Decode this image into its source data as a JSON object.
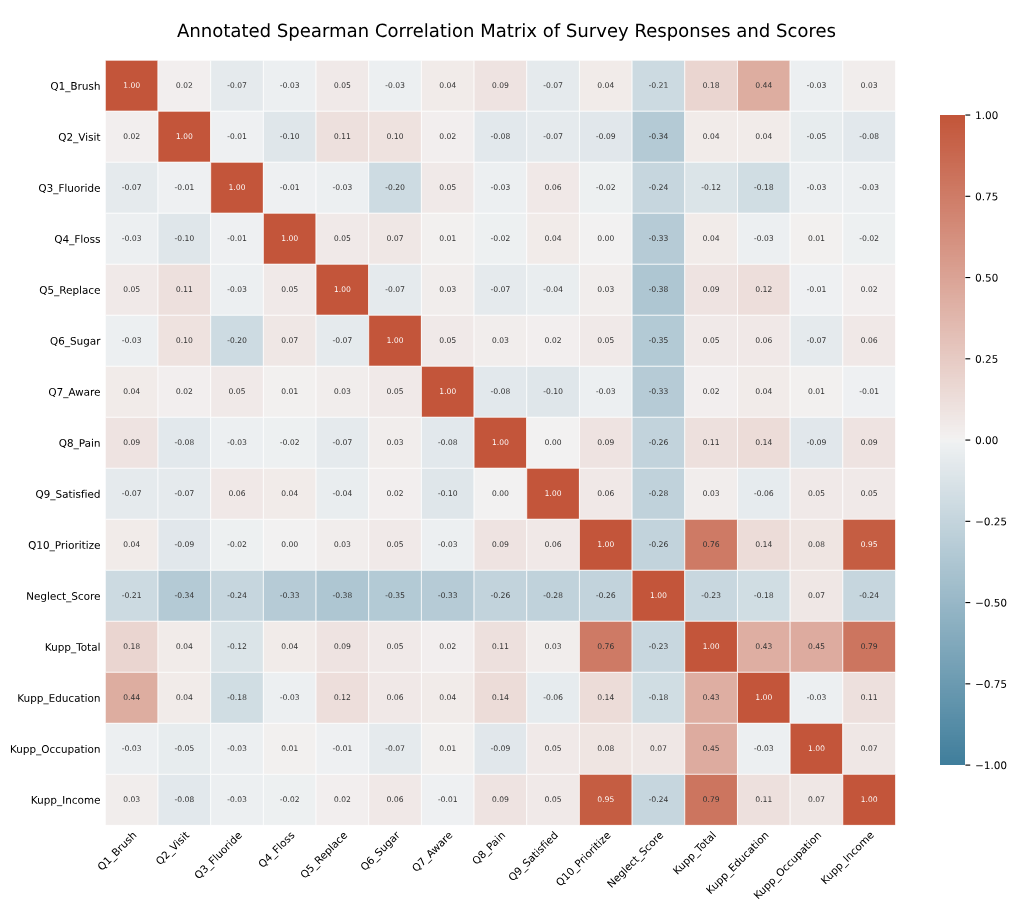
{
  "chart_data": {
    "type": "heatmap",
    "title": "Annotated Spearman Correlation Matrix of Survey Responses and Scores",
    "categories": [
      "Q1_Brush",
      "Q2_Visit",
      "Q3_Fluoride",
      "Q4_Floss",
      "Q5_Replace",
      "Q6_Sugar",
      "Q7_Aware",
      "Q8_Pain",
      "Q9_Satisfied",
      "Q10_Prioritize",
      "Neglect_Score",
      "Kupp_Total",
      "Kupp_Education",
      "Kupp_Occupation",
      "Kupp_Income"
    ],
    "y_categories": [
      "Q1_Brush",
      "Q2_Visit",
      "Q3_Fluoride",
      "Q4_Floss",
      "Q5_Replace",
      "Q6_Sugar",
      "Q7_Aware",
      "Q8_Pain",
      "Q9_Satisfied",
      "Q10_Prioritize",
      "Neglect_Score",
      "Kupp_Total",
      "Kupp_Education",
      "Kupp_Occupation",
      "Kupp_Income"
    ],
    "cells": [
      [
        1.0,
        0.02,
        -0.07,
        -0.03,
        0.05,
        -0.03,
        0.04,
        0.09,
        -0.07,
        0.04,
        -0.21,
        0.18,
        0.44,
        -0.03,
        0.03
      ],
      [
        0.02,
        1.0,
        -0.01,
        -0.1,
        0.11,
        0.1,
        0.02,
        -0.08,
        -0.07,
        -0.09,
        -0.34,
        0.04,
        0.04,
        -0.05,
        -0.08
      ],
      [
        -0.07,
        -0.01,
        1.0,
        -0.01,
        -0.03,
        -0.2,
        0.05,
        -0.03,
        0.06,
        -0.02,
        -0.24,
        -0.12,
        -0.18,
        -0.03,
        -0.03
      ],
      [
        -0.03,
        -0.1,
        -0.01,
        1.0,
        0.05,
        0.07,
        0.01,
        -0.02,
        0.04,
        0.0,
        -0.33,
        0.04,
        -0.03,
        0.01,
        -0.02
      ],
      [
        0.05,
        0.11,
        -0.03,
        0.05,
        1.0,
        -0.07,
        0.03,
        -0.07,
        -0.04,
        0.03,
        -0.38,
        0.09,
        0.12,
        -0.01,
        0.02
      ],
      [
        -0.03,
        0.1,
        -0.2,
        0.07,
        -0.07,
        1.0,
        0.05,
        0.03,
        0.02,
        0.05,
        -0.35,
        0.05,
        0.06,
        -0.07,
        0.06
      ],
      [
        0.04,
        0.02,
        0.05,
        0.01,
        0.03,
        0.05,
        1.0,
        -0.08,
        -0.1,
        -0.03,
        -0.33,
        0.02,
        0.04,
        0.01,
        -0.01
      ],
      [
        0.09,
        -0.08,
        -0.03,
        -0.02,
        -0.07,
        0.03,
        -0.08,
        1.0,
        0.0,
        0.09,
        -0.26,
        0.11,
        0.14,
        -0.09,
        0.09
      ],
      [
        -0.07,
        -0.07,
        0.06,
        0.04,
        -0.04,
        0.02,
        -0.1,
        0.0,
        1.0,
        0.06,
        -0.28,
        0.03,
        -0.06,
        0.05,
        0.05
      ],
      [
        0.04,
        -0.09,
        -0.02,
        0.0,
        0.03,
        0.05,
        -0.03,
        0.09,
        0.06,
        1.0,
        -0.26,
        0.76,
        0.14,
        0.08,
        0.95
      ],
      [
        -0.21,
        -0.34,
        -0.24,
        -0.33,
        -0.38,
        -0.35,
        -0.33,
        -0.26,
        -0.28,
        -0.26,
        1.0,
        -0.23,
        -0.18,
        0.07,
        -0.24
      ],
      [
        0.18,
        0.04,
        -0.12,
        0.04,
        0.09,
        0.05,
        0.02,
        0.11,
        0.03,
        0.76,
        -0.23,
        1.0,
        0.43,
        0.45,
        0.79
      ],
      [
        0.44,
        0.04,
        -0.18,
        -0.03,
        0.12,
        0.06,
        0.04,
        0.14,
        -0.06,
        0.14,
        -0.18,
        0.43,
        1.0,
        -0.03,
        0.11
      ],
      [
        -0.03,
        -0.05,
        -0.03,
        0.01,
        -0.01,
        -0.07,
        0.01,
        -0.09,
        0.05,
        0.08,
        0.07,
        0.45,
        -0.03,
        1.0,
        0.07
      ],
      [
        0.03,
        -0.08,
        -0.03,
        -0.02,
        0.02,
        0.06,
        -0.01,
        0.09,
        0.05,
        0.95,
        -0.24,
        0.79,
        0.11,
        0.07,
        1.0
      ]
    ],
    "cell_labels": [
      [
        "1.00",
        "0.02",
        "-0.07",
        "-0.03",
        "0.05",
        "-0.03",
        "0.04",
        "0.09",
        "-0.07",
        "0.04",
        "-0.21",
        "0.18",
        "0.44",
        "-0.03",
        "0.03"
      ],
      [
        "0.02",
        "1.00",
        "-0.01",
        "-0.10",
        "0.11",
        "0.10",
        "0.02",
        "-0.08",
        "-0.07",
        "-0.09",
        "-0.34",
        "0.04",
        "0.04",
        "-0.05",
        "-0.08"
      ],
      [
        "-0.07",
        "-0.01",
        "1.00",
        "-0.01",
        "-0.03",
        "-0.20",
        "0.05",
        "-0.03",
        "0.06",
        "-0.02",
        "-0.24",
        "-0.12",
        "-0.18",
        "-0.03",
        "-0.03"
      ],
      [
        "-0.03",
        "-0.10",
        "-0.01",
        "1.00",
        "0.05",
        "0.07",
        "0.01",
        "-0.02",
        "0.04",
        "0.00",
        "-0.33",
        "0.04",
        "-0.03",
        "0.01",
        "-0.02"
      ],
      [
        "0.05",
        "0.11",
        "-0.03",
        "0.05",
        "1.00",
        "-0.07",
        "0.03",
        "-0.07",
        "-0.04",
        "0.03",
        "-0.38",
        "0.09",
        "0.12",
        "-0.01",
        "0.02"
      ],
      [
        "-0.03",
        "0.10",
        "-0.20",
        "0.07",
        "-0.07",
        "1.00",
        "0.05",
        "0.03",
        "0.02",
        "0.05",
        "-0.35",
        "0.05",
        "0.06",
        "-0.07",
        "0.06"
      ],
      [
        "0.04",
        "0.02",
        "0.05",
        "0.01",
        "0.03",
        "0.05",
        "1.00",
        "-0.08",
        "-0.10",
        "-0.03",
        "-0.33",
        "0.02",
        "0.04",
        "0.01",
        "-0.01"
      ],
      [
        "0.09",
        "-0.08",
        "-0.03",
        "-0.02",
        "-0.07",
        "0.03",
        "-0.08",
        "1.00",
        "0.00",
        "0.09",
        "-0.26",
        "0.11",
        "0.14",
        "-0.09",
        "0.09"
      ],
      [
        "-0.07",
        "-0.07",
        "0.06",
        "0.04",
        "-0.04",
        "0.02",
        "-0.10",
        "0.00",
        "1.00",
        "0.06",
        "-0.28",
        "0.03",
        "-0.06",
        "0.05",
        "0.05"
      ],
      [
        "0.04",
        "-0.09",
        "-0.02",
        "0.00",
        "0.03",
        "0.05",
        "-0.03",
        "0.09",
        "0.06",
        "1.00",
        "-0.26",
        "0.76",
        "0.14",
        "0.08",
        "0.95"
      ],
      [
        "-0.21",
        "-0.34",
        "-0.24",
        "-0.33",
        "-0.38",
        "-0.35",
        "-0.33",
        "-0.26",
        "-0.28",
        "-0.26",
        "1.00",
        "-0.23",
        "-0.18",
        "0.07",
        "-0.24"
      ],
      [
        "0.18",
        "0.04",
        "-0.12",
        "0.04",
        "0.09",
        "0.05",
        "0.02",
        "0.11",
        "0.03",
        "0.76",
        "-0.23",
        "1.00",
        "0.43",
        "0.45",
        "0.79"
      ],
      [
        "0.44",
        "0.04",
        "-0.18",
        "-0.03",
        "0.12",
        "0.06",
        "0.04",
        "0.14",
        "-0.06",
        "0.14",
        "-0.18",
        "0.43",
        "1.00",
        "-0.03",
        "0.11"
      ],
      [
        "-0.03",
        "-0.05",
        "-0.03",
        "0.01",
        "-0.01",
        "-0.07",
        "0.01",
        "-0.09",
        "0.05",
        "0.08",
        "0.07",
        "0.45",
        "-0.03",
        "1.00",
        "0.07"
      ],
      [
        "0.03",
        "-0.08",
        "-0.03",
        "-0.02",
        "0.02",
        "0.06",
        "-0.01",
        "0.09",
        "0.05",
        "0.95",
        "-0.24",
        "0.79",
        "0.11",
        "0.07",
        "1.00"
      ]
    ],
    "clim": [
      -1.0,
      1.0
    ],
    "cticks": [
      {
        "value": -1.0,
        "label": "−1.00"
      },
      {
        "value": -0.75,
        "label": "−0.75"
      },
      {
        "value": -0.5,
        "label": "−0.50"
      },
      {
        "value": -0.25,
        "label": "−0.25"
      },
      {
        "value": 0.0,
        "label": "0.00"
      },
      {
        "value": 0.25,
        "label": "0.25"
      },
      {
        "value": 0.5,
        "label": "0.50"
      },
      {
        "value": 0.75,
        "label": "0.75"
      },
      {
        "value": 1.0,
        "label": "1.00"
      }
    ]
  }
}
